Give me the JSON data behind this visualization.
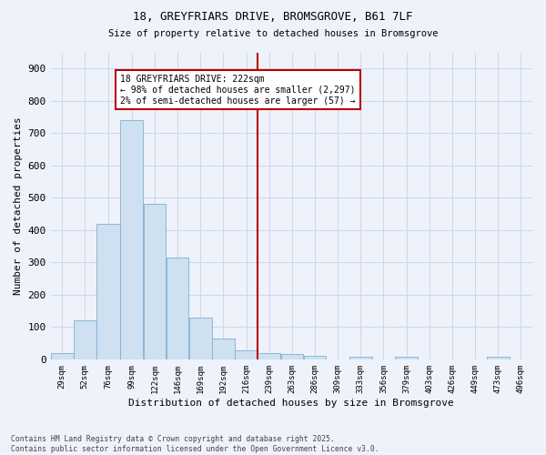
{
  "title": "18, GREYFRIARS DRIVE, BROMSGROVE, B61 7LF",
  "subtitle": "Size of property relative to detached houses in Bromsgrove",
  "xlabel": "Distribution of detached houses by size in Bromsgrove",
  "ylabel": "Number of detached properties",
  "bar_color": "#cfe0f0",
  "bar_edge_color": "#7ab0d4",
  "background_color": "#eef2fb",
  "grid_color": "#d0d8e8",
  "vline_color": "#bb0000",
  "annotation_text": "18 GREYFRIARS DRIVE: 222sqm\n← 98% of detached houses are smaller (2,297)\n2% of semi-detached houses are larger (57) →",
  "annotation_box_color": "#bb0000",
  "annotation_bg": "#ffffff",
  "categories": [
    "29sqm",
    "52sqm",
    "76sqm",
    "99sqm",
    "122sqm",
    "146sqm",
    "169sqm",
    "192sqm",
    "216sqm",
    "239sqm",
    "263sqm",
    "286sqm",
    "309sqm",
    "333sqm",
    "356sqm",
    "379sqm",
    "403sqm",
    "426sqm",
    "449sqm",
    "473sqm",
    "496sqm"
  ],
  "bin_edges": [
    17.5,
    40.5,
    63.5,
    87.5,
    110.5,
    133.5,
    156.5,
    179.5,
    202.5,
    225.5,
    248.5,
    271.5,
    294.5,
    317.5,
    340.5,
    363.5,
    386.5,
    409.5,
    432.5,
    455.5,
    478.5,
    501.5
  ],
  "bar_heights": [
    18,
    120,
    420,
    740,
    480,
    315,
    130,
    65,
    27,
    20,
    17,
    10,
    0,
    7,
    0,
    7,
    0,
    0,
    0,
    7,
    0
  ],
  "vline_x": 216,
  "footnote": "Contains HM Land Registry data © Crown copyright and database right 2025.\nContains public sector information licensed under the Open Government Licence v3.0.",
  "ylim": [
    0,
    950
  ],
  "yticks": [
    0,
    100,
    200,
    300,
    400,
    500,
    600,
    700,
    800,
    900
  ]
}
